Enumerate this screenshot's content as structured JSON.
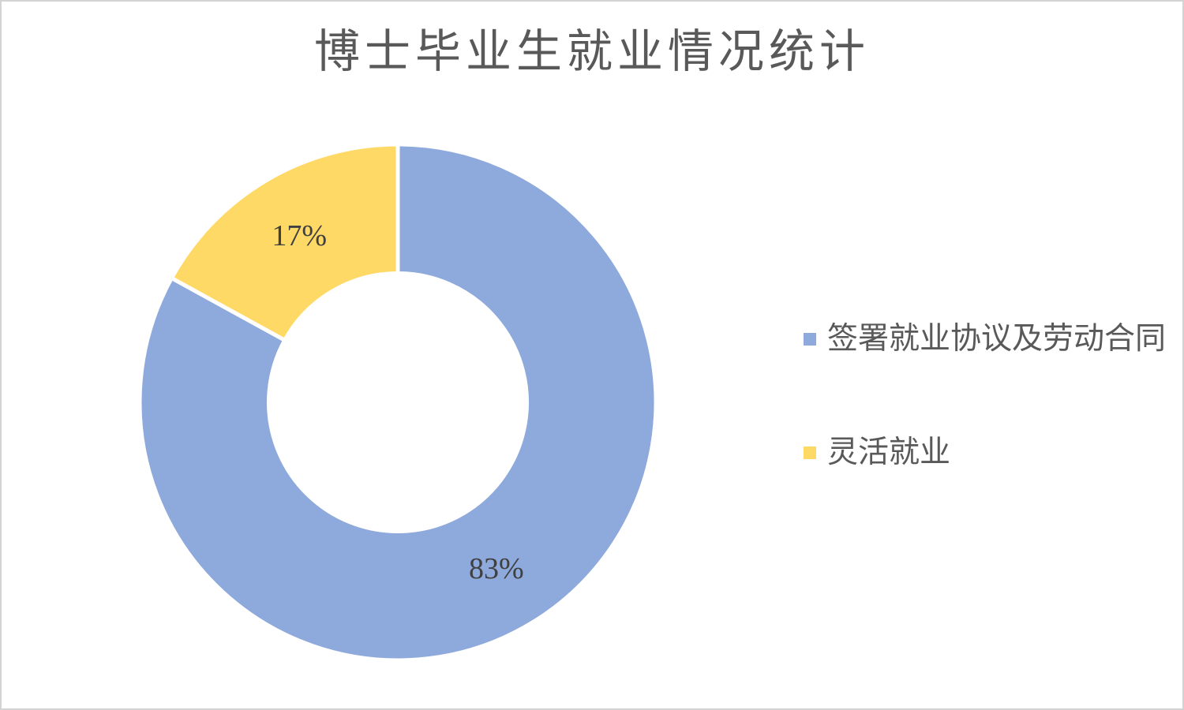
{
  "page": {
    "background": "#FFFFFF",
    "border_color": "#D3D3D3"
  },
  "chart_data": {
    "type": "pie",
    "subtype": "donut",
    "title": "博士毕业生就业情况统计",
    "labels": [
      "签署就业协议及劳动合同",
      "灵活就业"
    ],
    "values": [
      83,
      17
    ],
    "unit": "percent",
    "colors": [
      "#8EA9DB",
      "#FFD966"
    ],
    "data_labels": [
      "83%",
      "17%"
    ],
    "data_label_color": "#404040",
    "title_color": "#595959",
    "legend_text_color": "#595959",
    "donut_hole": 0.5,
    "start_angle_deg": 0,
    "direction": "clockwise",
    "separator_color": "#FFFFFF",
    "legend_position": "right",
    "grid": false
  },
  "legend": {
    "items": [
      {
        "label": "签署就业协议及劳动合同",
        "color": "#8EA9DB"
      },
      {
        "label": "灵活就业",
        "color": "#FFD966"
      }
    ]
  }
}
